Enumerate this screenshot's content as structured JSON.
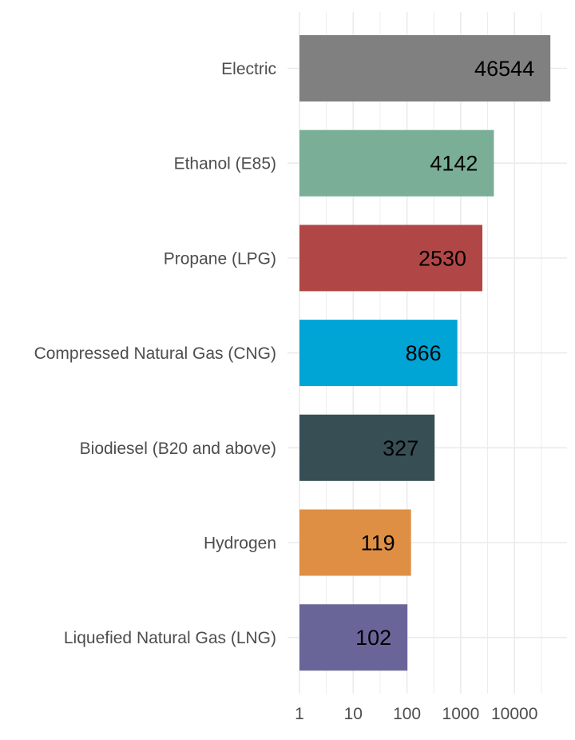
{
  "chart_data": {
    "type": "bar",
    "orientation": "horizontal",
    "title": "",
    "xlabel": "",
    "ylabel": "",
    "x_scale": "log10",
    "xlim": [
      1,
      60000
    ],
    "x_ticks": [
      1,
      10,
      100,
      1000,
      10000
    ],
    "x_tick_labels": [
      "1",
      "10",
      "100",
      "1000",
      "10000"
    ],
    "grid": true,
    "legend": "none",
    "categories": [
      "Electric",
      "Ethanol (E85)",
      "Propane (LPG)",
      "Compressed Natural Gas (CNG)",
      "Biodiesel (B20 and above)",
      "Hydrogen",
      "Liquefied Natural Gas (LNG)"
    ],
    "values": [
      46544,
      4142,
      2530,
      866,
      327,
      119,
      102
    ],
    "value_labels": [
      "46544",
      "4142",
      "2530",
      "866",
      "327",
      "119",
      "102"
    ],
    "colors": [
      "#808080",
      "#7aae96",
      "#b04746",
      "#00a4d5",
      "#374e55",
      "#df8f44",
      "#6a6599"
    ]
  }
}
